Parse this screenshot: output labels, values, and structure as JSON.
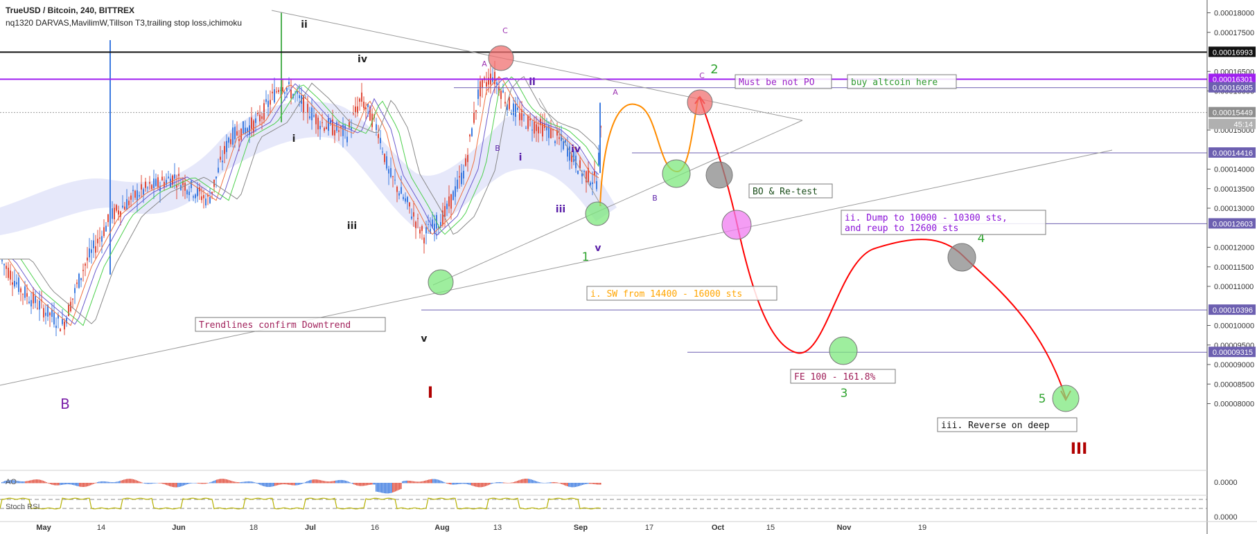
{
  "header": {
    "symbol_line": "TrueUSD / Bitcoin, 240, BITTREX",
    "indicators_line": "nq1320 DARVAS,MavilimW,Tillson T3,trailing stop loss,ichimoku"
  },
  "colors": {
    "up_candle": "#3d7be0",
    "down_candle": "#e04b3a",
    "purple_line": "#a020f0",
    "level_line": "#6c5fb0",
    "black_line": "#111111",
    "projection_orange": "#ff8c00",
    "projection_red": "#ff0000",
    "green_circle": "#7ee87e",
    "red_circle": "#f07070",
    "magenta_circle": "#f07cf0",
    "grey_circle": "#8a8a8a",
    "stoch_line": "#b5b000"
  },
  "price_axis": {
    "ticks": [
      "0.00018000",
      "0.00017500",
      "0.00016500",
      "0.00016000",
      "0.00015000",
      "0.00014000",
      "0.00013500",
      "0.00013000",
      "0.00012000",
      "0.00011500",
      "0.00011000",
      "0.00010000",
      "0.00009500",
      "0.00009000",
      "0.00008500",
      "0.00008000"
    ],
    "price_tags": [
      {
        "text": "0.00016993",
        "bg": "#111111"
      },
      {
        "text": "0.00016301",
        "bg": "#a020f0"
      },
      {
        "text": "0.00016085",
        "bg": "#6c5fb0"
      },
      {
        "text": "0.00015449",
        "bg": "#8e8e8e"
      },
      {
        "text": "45:14",
        "bg": "#b0b0b0"
      },
      {
        "text": "0.00014416",
        "bg": "#6c5fb0"
      },
      {
        "text": "0.00012603",
        "bg": "#6c5fb0"
      },
      {
        "text": "0.00010396",
        "bg": "#6c5fb0"
      },
      {
        "text": "0.00009315",
        "bg": "#6c5fb0"
      }
    ],
    "sub_ticks": [
      "0.0000",
      "0.0000"
    ]
  },
  "time_axis": {
    "labels": [
      "May",
      "14",
      "Jun",
      "18",
      "Jul",
      "16",
      "Aug",
      "13",
      "Sep",
      "17",
      "Oct",
      "15",
      "Nov",
      "19"
    ]
  },
  "subpanes": {
    "ao_label": "AO",
    "stoch_label": "Stoch RSI"
  },
  "chart_data": {
    "type": "candlestick",
    "x_range": [
      "May",
      "Nov 19+"
    ],
    "ylim": [
      8e-05,
      0.00018
    ],
    "levels": [
      0.00016993,
      0.00016301,
      0.00016085,
      0.00014416,
      0.00012603,
      0.00010396,
      9.315e-05
    ],
    "last_price": 0.00015449,
    "grid": false,
    "projection_path_orange": [
      0.00014,
      0.000159,
      0.000145,
      0.000161
    ],
    "projection_path_red": [
      0.000161,
      0.000133,
      0.000104,
      0.000126,
      9.3e-05
    ]
  },
  "annotations": {
    "waves": {
      "B_left": "B",
      "I": "I",
      "III": "III",
      "one": "1",
      "two": "2",
      "three": "3",
      "four": "4",
      "five": "5",
      "ii_top": "ii",
      "iv_top": "iv",
      "i_left": "i",
      "iii_left": "iii",
      "v_left": "v",
      "C_top": "C",
      "A_top": "A",
      "ii_mid": "ii",
      "B_mid": "B",
      "i_mid": "i",
      "iv_mid": "iv",
      "iii_mid": "iii",
      "v_mid": "v",
      "A_proj": "A",
      "B_proj": "B",
      "C_proj": "C"
    },
    "boxes": {
      "must_be_not_po": "Must be not PO",
      "buy_altcoin": "buy altcoin here",
      "bo_retest": "BO & Re-test",
      "dump_line1": "ii. Dump to 10000 - 10300 sts,",
      "dump_line2": " and reup to 12600 sts",
      "sw_from": "i. SW from 14400 - 16000 sts",
      "trendlines": "Trendlines confirm Downtrend",
      "fe": "FE 100 - 161.8%",
      "reverse": "iii. Reverse on deep"
    }
  }
}
